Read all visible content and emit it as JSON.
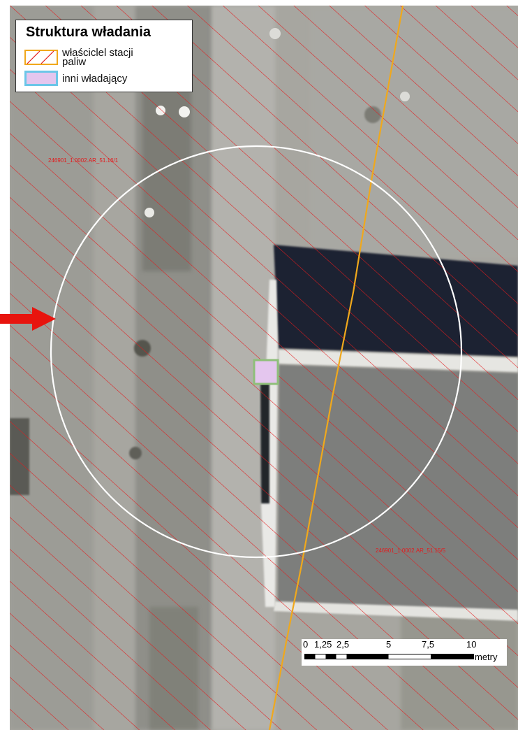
{
  "legend": {
    "title": "Struktura władania",
    "items": [
      {
        "label": "właściclel stacji paliw",
        "line1": "właściclel stacji",
        "line2": "paliw",
        "symbol": "red-hatch-orange-outline"
      },
      {
        "label": "inni władający",
        "symbol": "pink-fill-cyan-outline"
      }
    ]
  },
  "parcels": [
    {
      "id": "246901_1.0002.AR_51.16/1"
    },
    {
      "id": "246901_1.0002.AR_51.15/5"
    }
  ],
  "scale_bar": {
    "ticks": [
      "0",
      "1,25",
      "2,5",
      "5",
      "7,5",
      "10"
    ],
    "unit": "metry"
  },
  "colors": {
    "hatch": "#e31a1c",
    "boundary": "#f0a81c",
    "buffer_circle": "#ffffff",
    "indicator_arrow": "#e8140e",
    "other_owner_fill": "#e4c6ee",
    "other_owner_outline": "#8fbf7a"
  },
  "icons": {
    "arrow": "red-arrow-icon"
  }
}
